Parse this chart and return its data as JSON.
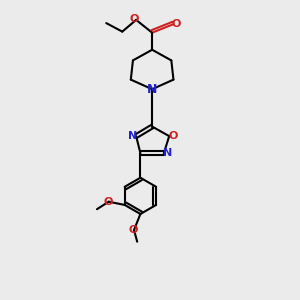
{
  "bg_color": "#ebebeb",
  "bond_color": "#000000",
  "N_color": "#2222cc",
  "O_color": "#cc2222",
  "font_size": 8,
  "line_width": 1.5,
  "figsize": [
    3.0,
    3.0
  ],
  "dpi": 100,
  "xlim": [
    0,
    10
  ],
  "ylim": [
    0,
    14
  ]
}
